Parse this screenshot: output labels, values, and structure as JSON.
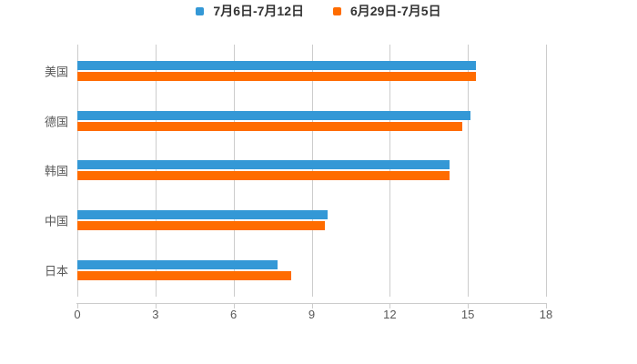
{
  "legend": {
    "items": [
      {
        "label": "7月6日-7月12日",
        "color": "#3498D6"
      },
      {
        "label": "6月29日-7月5日",
        "color": "#FF6C00"
      }
    ]
  },
  "chart_data": {
    "type": "bar",
    "orientation": "horizontal",
    "title": "",
    "xlabel": "",
    "ylabel": "",
    "categories": [
      "美国",
      "德国",
      "韩国",
      "中国",
      "日本"
    ],
    "series": [
      {
        "name": "7月6日-7月12日",
        "color": "#3498D6",
        "values": [
          15.3,
          15.1,
          14.3,
          9.6,
          7.7
        ]
      },
      {
        "name": "6月29日-7月5日",
        "color": "#FF6C00",
        "values": [
          15.3,
          14.8,
          14.3,
          9.5,
          8.2
        ]
      }
    ],
    "xlim": [
      0,
      18
    ],
    "xticks": [
      0,
      3,
      6,
      9,
      12,
      15,
      18
    ],
    "grid": true,
    "legend_position": "top-center"
  },
  "colors": {
    "grid": "#CCCCCC",
    "axis": "#CCCCCC",
    "tick_label": "#595959",
    "category_label": "#595959",
    "legend_text": "#333333",
    "background": "#FFFFFF"
  }
}
